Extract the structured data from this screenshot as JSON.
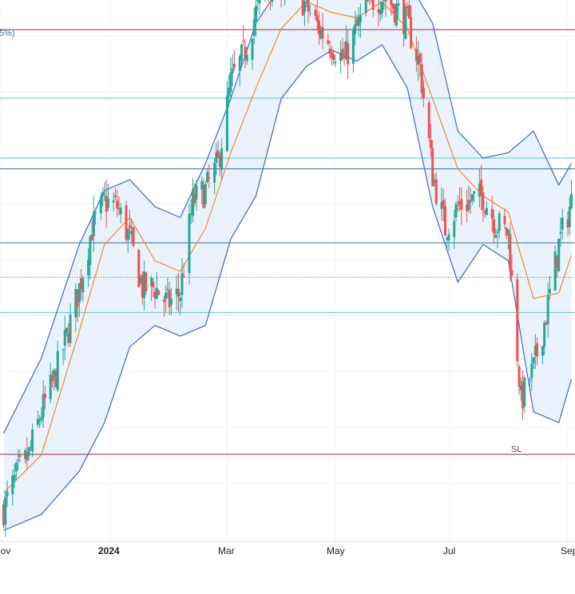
{
  "chart_data": {
    "type": "candlestick",
    "timeframe_note": "Daily candles with Bollinger Bands (blue bands, orange basis)",
    "x_axis": {
      "labels": [
        "Nov",
        "2024",
        "Mar",
        "May",
        "Jul",
        "Sep"
      ],
      "emphasized": [
        "2024"
      ]
    },
    "partial_label": "5%)",
    "annotations": [
      {
        "text": "SL",
        "date": "early Aug 2024"
      }
    ],
    "colors": {
      "up": "#26a69a",
      "down": "#ef5350",
      "band": "#3f62d9",
      "basis": "#f08a2a",
      "band_fill": "#eaf3fb",
      "level_red": "#9c2a3e",
      "level_teal": "#5cc6c6",
      "level_blue": "#3d6ea8",
      "level_dotted": "#2e8b57",
      "grid": "#f0f0f0",
      "axis_text": "#222222"
    },
    "grid": true,
    "legend": "none",
    "scale_note": "Price scale labels are not visible; values below are relative units (0 = chart bottom, 100 = chart top)",
    "y_range": [
      0,
      100
    ],
    "horizontal_levels": [
      {
        "style": "solid",
        "color": "level_red",
        "value": 94.8
      },
      {
        "style": "solid",
        "color": "level_teal",
        "value": 82.1
      },
      {
        "style": "solid",
        "color": "level_teal",
        "value": 71.0
      },
      {
        "style": "solid",
        "color": "level_blue",
        "value": 69.0
      },
      {
        "style": "solid",
        "color": "level_blue",
        "value": 55.3
      },
      {
        "style": "dotted",
        "color": "level_dotted",
        "value": 48.9
      },
      {
        "style": "solid",
        "color": "level_teal",
        "value": 42.4
      },
      {
        "style": "solid",
        "color": "level_red",
        "value": 16.1
      }
    ],
    "close_path": [
      [
        "2023-10-25",
        6
      ],
      [
        "2023-11-01",
        12
      ],
      [
        "2023-11-08",
        16
      ],
      [
        "2023-11-15",
        24
      ],
      [
        "2023-11-22",
        30
      ],
      [
        "2023-11-29",
        38
      ],
      [
        "2023-12-06",
        47
      ],
      [
        "2023-12-13",
        58
      ],
      [
        "2023-12-20",
        63
      ],
      [
        "2023-12-27",
        62
      ],
      [
        "2024-01-03",
        56
      ],
      [
        "2024-01-10",
        47
      ],
      [
        "2024-01-17",
        47
      ],
      [
        "2024-01-24",
        44
      ],
      [
        "2024-01-31",
        46
      ],
      [
        "2024-02-07",
        63
      ],
      [
        "2024-02-14",
        65
      ],
      [
        "2024-02-21",
        70
      ],
      [
        "2024-02-28",
        85
      ],
      [
        "2024-03-06",
        90
      ],
      [
        "2024-03-13",
        98
      ],
      [
        "2024-03-20",
        103
      ],
      [
        "2024-03-27",
        104
      ],
      [
        "2024-04-03",
        103
      ],
      [
        "2024-04-10",
        99
      ],
      [
        "2024-04-17",
        95
      ],
      [
        "2024-04-24",
        92
      ],
      [
        "2024-05-01",
        89
      ],
      [
        "2024-05-08",
        95
      ],
      [
        "2024-05-15",
        100
      ],
      [
        "2024-05-22",
        101
      ],
      [
        "2024-05-29",
        99
      ],
      [
        "2024-06-05",
        96
      ],
      [
        "2024-06-12",
        88
      ],
      [
        "2024-06-19",
        68
      ],
      [
        "2024-06-26",
        58
      ],
      [
        "2024-07-03",
        62
      ],
      [
        "2024-07-10",
        63
      ],
      [
        "2024-07-17",
        64
      ],
      [
        "2024-07-24",
        59
      ],
      [
        "2024-07-31",
        57
      ],
      [
        "2024-08-07",
        26
      ],
      [
        "2024-08-14",
        32
      ],
      [
        "2024-08-21",
        42
      ],
      [
        "2024-08-28",
        55
      ],
      [
        "2024-09-04",
        63
      ]
    ],
    "bollinger": {
      "upper": [
        [
          "2023-10-25",
          20
        ],
        [
          "2023-11-15",
          34
        ],
        [
          "2023-12-06",
          55
        ],
        [
          "2023-12-20",
          65
        ],
        [
          "2024-01-03",
          67
        ],
        [
          "2024-01-17",
          62
        ],
        [
          "2024-01-31",
          60
        ],
        [
          "2024-02-14",
          70
        ],
        [
          "2024-02-28",
          82
        ],
        [
          "2024-03-13",
          96
        ],
        [
          "2024-03-27",
          103
        ],
        [
          "2024-04-10",
          104
        ],
        [
          "2024-04-24",
          103
        ],
        [
          "2024-05-08",
          104
        ],
        [
          "2024-05-22",
          105
        ],
        [
          "2024-06-05",
          104
        ],
        [
          "2024-06-19",
          96
        ],
        [
          "2024-07-03",
          76
        ],
        [
          "2024-07-17",
          71
        ],
        [
          "2024-07-31",
          72
        ],
        [
          "2024-08-14",
          76
        ],
        [
          "2024-08-28",
          66
        ],
        [
          "2024-09-04",
          70
        ]
      ],
      "basis": [
        [
          "2023-10-25",
          9
        ],
        [
          "2023-11-15",
          16
        ],
        [
          "2023-12-06",
          39
        ],
        [
          "2023-12-20",
          55
        ],
        [
          "2024-01-03",
          60
        ],
        [
          "2024-01-17",
          52
        ],
        [
          "2024-01-31",
          50
        ],
        [
          "2024-02-14",
          58
        ],
        [
          "2024-02-28",
          72
        ],
        [
          "2024-03-13",
          84
        ],
        [
          "2024-03-27",
          95
        ],
        [
          "2024-04-10",
          100
        ],
        [
          "2024-04-24",
          98
        ],
        [
          "2024-05-08",
          97
        ],
        [
          "2024-05-22",
          100
        ],
        [
          "2024-06-05",
          95
        ],
        [
          "2024-06-19",
          82
        ],
        [
          "2024-07-03",
          69
        ],
        [
          "2024-07-17",
          64
        ],
        [
          "2024-07-31",
          61
        ],
        [
          "2024-08-14",
          45
        ],
        [
          "2024-08-28",
          46
        ],
        [
          "2024-09-04",
          53
        ]
      ],
      "lower": [
        [
          "2023-10-25",
          2
        ],
        [
          "2023-11-15",
          5
        ],
        [
          "2023-12-06",
          13
        ],
        [
          "2023-12-20",
          22
        ],
        [
          "2024-01-03",
          36
        ],
        [
          "2024-01-17",
          40
        ],
        [
          "2024-01-31",
          38
        ],
        [
          "2024-02-14",
          40
        ],
        [
          "2024-02-28",
          56
        ],
        [
          "2024-03-13",
          64
        ],
        [
          "2024-03-27",
          82
        ],
        [
          "2024-04-10",
          88
        ],
        [
          "2024-04-24",
          91
        ],
        [
          "2024-05-08",
          89
        ],
        [
          "2024-05-22",
          92
        ],
        [
          "2024-06-05",
          84
        ],
        [
          "2024-06-19",
          62
        ],
        [
          "2024-07-03",
          48
        ],
        [
          "2024-07-17",
          55
        ],
        [
          "2024-07-31",
          52
        ],
        [
          "2024-08-14",
          24
        ],
        [
          "2024-08-28",
          22
        ],
        [
          "2024-09-04",
          30
        ]
      ]
    }
  }
}
